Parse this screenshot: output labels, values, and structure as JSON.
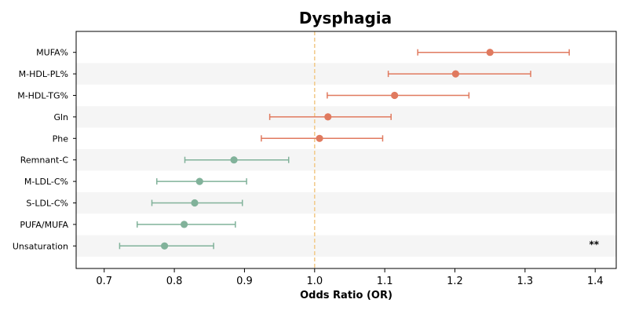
{
  "chart_data": {
    "type": "forest",
    "title": "Dysphagia",
    "xlabel": "Odds Ratio (OR)",
    "xlim": [
      0.66,
      1.43
    ],
    "xticks": [
      "0.7",
      "0.8",
      "0.9",
      "1.0",
      "1.1",
      "1.2",
      "1.3",
      "1.4"
    ],
    "reference_line": 1.0,
    "colors": {
      "positive": "#E07A5F",
      "negative": "#81B29A",
      "reference": "#F2CC8F",
      "band": "#F5F5F5"
    },
    "rows": [
      {
        "label": "MUFA%",
        "or": 1.25,
        "lo": 1.147,
        "hi": 1.363,
        "group": "positive"
      },
      {
        "label": "M-HDL-PL%",
        "or": 1.201,
        "lo": 1.105,
        "hi": 1.308,
        "group": "positive"
      },
      {
        "label": "M-HDL-TG%",
        "or": 1.114,
        "lo": 1.018,
        "hi": 1.22,
        "group": "positive"
      },
      {
        "label": "Gln",
        "or": 1.019,
        "lo": 0.936,
        "hi": 1.109,
        "group": "positive"
      },
      {
        "label": "Phe",
        "or": 1.007,
        "lo": 0.924,
        "hi": 1.097,
        "group": "positive"
      },
      {
        "label": "Remnant-C",
        "or": 0.885,
        "lo": 0.815,
        "hi": 0.963,
        "group": "negative"
      },
      {
        "label": "M-LDL-C%",
        "or": 0.836,
        "lo": 0.775,
        "hi": 0.903,
        "group": "negative"
      },
      {
        "label": "S-LDL-C%",
        "or": 0.829,
        "lo": 0.768,
        "hi": 0.897,
        "group": "negative"
      },
      {
        "label": "PUFA/MUFA",
        "or": 0.814,
        "lo": 0.747,
        "hi": 0.887,
        "group": "negative"
      },
      {
        "label": "Unsaturation",
        "or": 0.786,
        "lo": 0.722,
        "hi": 0.856,
        "group": "negative"
      }
    ],
    "annotations": [
      {
        "row": "Unsaturation",
        "text": "**"
      }
    ]
  }
}
